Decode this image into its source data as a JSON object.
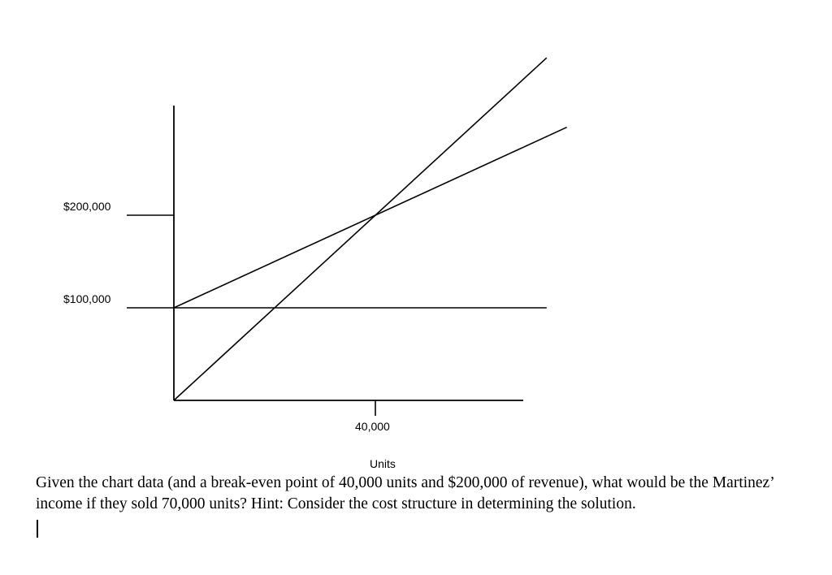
{
  "chart_data": {
    "type": "line",
    "title": "",
    "xlabel": "Units",
    "ylabel": "",
    "x_ticks": [
      {
        "value": 40000,
        "label": "40,000"
      }
    ],
    "y_ticks": [
      {
        "value": 100000,
        "label": "$100,000"
      },
      {
        "value": 200000,
        "label": "$200,000"
      }
    ],
    "xlim": [
      0,
      74000
    ],
    "ylim": [
      0,
      320000
    ],
    "grid": false,
    "legend": "none",
    "series": [
      {
        "x": [
          0,
          74000
        ],
        "y": [
          0,
          370000
        ]
      },
      {
        "x": [
          0,
          78000
        ],
        "y": [
          100000,
          295000
        ]
      },
      {
        "x": [
          0,
          74000
        ],
        "y": [
          100000,
          100000
        ]
      }
    ]
  },
  "question": {
    "text": "Given the chart data (and a break-even point of 40,000 units and $200,000 of revenue), what would be the Martinez’ income if they sold 70,000 units?  Hint: Consider the cost structure in determining the solution."
  }
}
